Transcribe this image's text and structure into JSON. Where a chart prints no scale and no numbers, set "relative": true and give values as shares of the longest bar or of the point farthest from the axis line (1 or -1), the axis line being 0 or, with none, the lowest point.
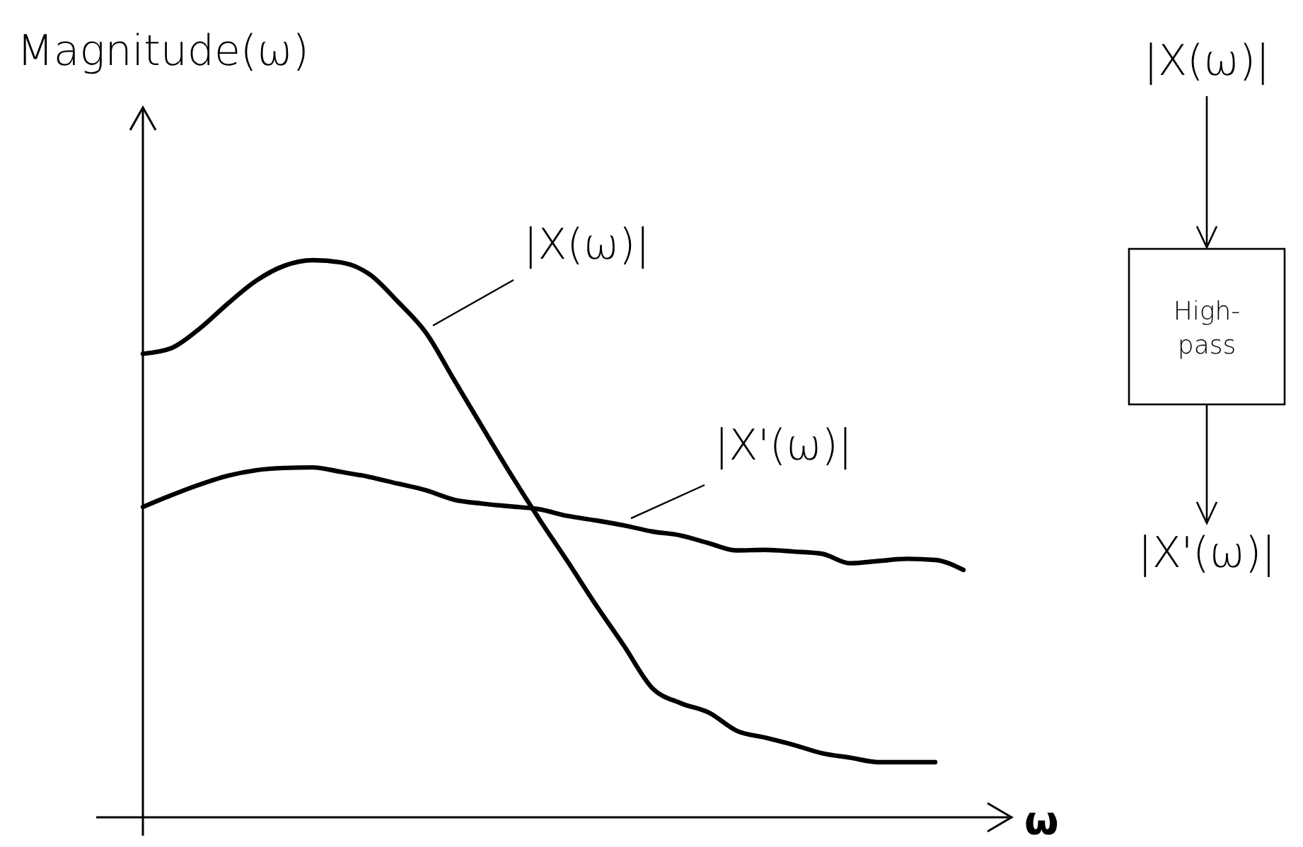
{
  "chart_data": {
    "type": "line",
    "relative": true,
    "ylabel": "Magnitude(ω)",
    "xlabel": "ω",
    "categories": [
      null,
      null,
      null,
      null,
      null,
      null,
      null,
      null,
      null,
      null,
      null,
      null,
      null,
      null,
      null,
      null,
      null,
      null,
      null,
      null,
      null,
      null,
      null,
      null,
      null,
      null,
      null,
      null,
      null,
      null
    ],
    "series": [
      {
        "name": "|X(ω)|",
        "color": "#000000",
        "values": [
          0.832,
          0.842,
          0.877,
          0.922,
          0.963,
          0.99,
          1.0,
          0.996,
          0.975,
          0.926,
          0.87,
          0.785,
          0.7,
          0.616,
          0.536,
          0.46,
          0.382,
          0.308,
          0.232,
          0.205,
          0.188,
          0.155,
          0.143,
          0.13,
          0.115,
          0.107,
          0.099,
          0.099,
          0.099,
          null
        ]
      },
      {
        "name": "|X'(ω)|",
        "color": "#000000",
        "values": [
          0.557,
          0.578,
          0.597,
          0.613,
          0.623,
          0.627,
          0.628,
          0.62,
          0.611,
          0.599,
          0.587,
          0.57,
          0.563,
          0.558,
          0.553,
          0.541,
          0.533,
          0.524,
          0.513,
          0.506,
          0.492,
          0.479,
          0.48,
          0.477,
          0.473,
          0.456,
          0.46,
          0.464,
          0.462,
          0.444
        ]
      }
    ],
    "annotations": [
      "|X(ω)|",
      "High-pass",
      "|X'(ω)|"
    ],
    "legend": false,
    "marker": "none",
    "line_style": "solid"
  }
}
